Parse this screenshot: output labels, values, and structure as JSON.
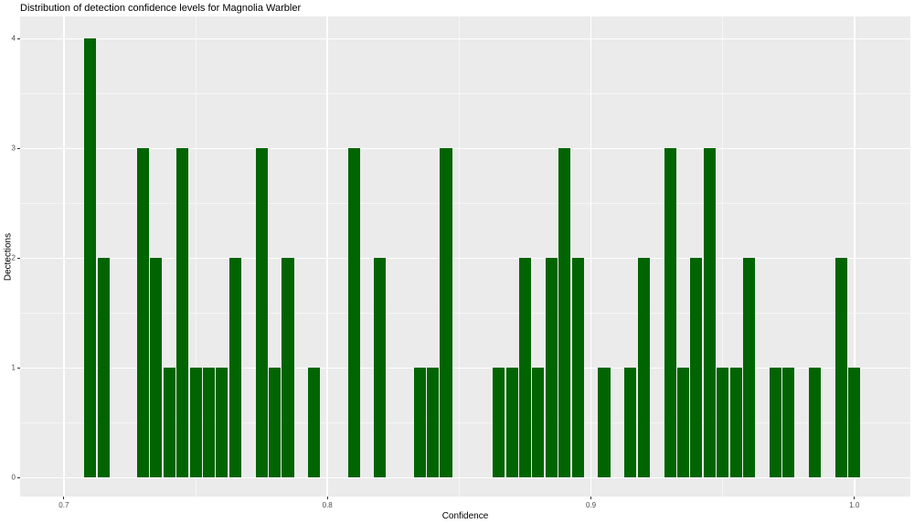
{
  "chart_data": {
    "type": "bar",
    "subtype": "histogram",
    "title": "Distribution of detection confidence levels for Magnolia Warbler",
    "xlabel": "Confidence",
    "ylabel": "Dectections",
    "legend": "none",
    "grid": "on",
    "panel_bg": "#EBEBEB",
    "grid_color": "#FFFFFF",
    "bar_color": "#006400",
    "tick_color": "#333333",
    "tick_label_color": "#4d4d4d",
    "binwidth": 0.005,
    "xlim": [
      0.6834,
      1.0212
    ],
    "ylim": [
      -0.171,
      4.204
    ],
    "x_ticks": {
      "values": [
        0.7,
        0.8,
        0.9,
        1.0
      ],
      "labels": [
        "0.7",
        "0.8",
        "0.9",
        "1.0"
      ]
    },
    "y_ticks": {
      "values": [
        0,
        1,
        2,
        3,
        4
      ],
      "labels": [
        "0",
        "1",
        "2",
        "3",
        "4"
      ]
    },
    "x_minor_gridlines": [
      0.75,
      0.85,
      0.95
    ],
    "y_minor_gridlines": [
      0.5,
      1.5,
      2.5,
      3.5
    ],
    "bin_centers": [
      0.71,
      0.715,
      0.73,
      0.735,
      0.74,
      0.745,
      0.75,
      0.755,
      0.76,
      0.765,
      0.775,
      0.78,
      0.785,
      0.795,
      0.81,
      0.82,
      0.835,
      0.84,
      0.845,
      0.865,
      0.87,
      0.875,
      0.88,
      0.885,
      0.89,
      0.895,
      0.905,
      0.915,
      0.92,
      0.93,
      0.935,
      0.94,
      0.945,
      0.95,
      0.955,
      0.96,
      0.97,
      0.975,
      0.985,
      0.995,
      1.0
    ],
    "counts": [
      4,
      2,
      3,
      2,
      1,
      3,
      1,
      1,
      1,
      2,
      3,
      1,
      2,
      1,
      3,
      2,
      1,
      1,
      3,
      1,
      1,
      2,
      1,
      2,
      3,
      2,
      1,
      1,
      2,
      3,
      1,
      2,
      3,
      1,
      1,
      2,
      1,
      1,
      1,
      2,
      1
    ]
  }
}
